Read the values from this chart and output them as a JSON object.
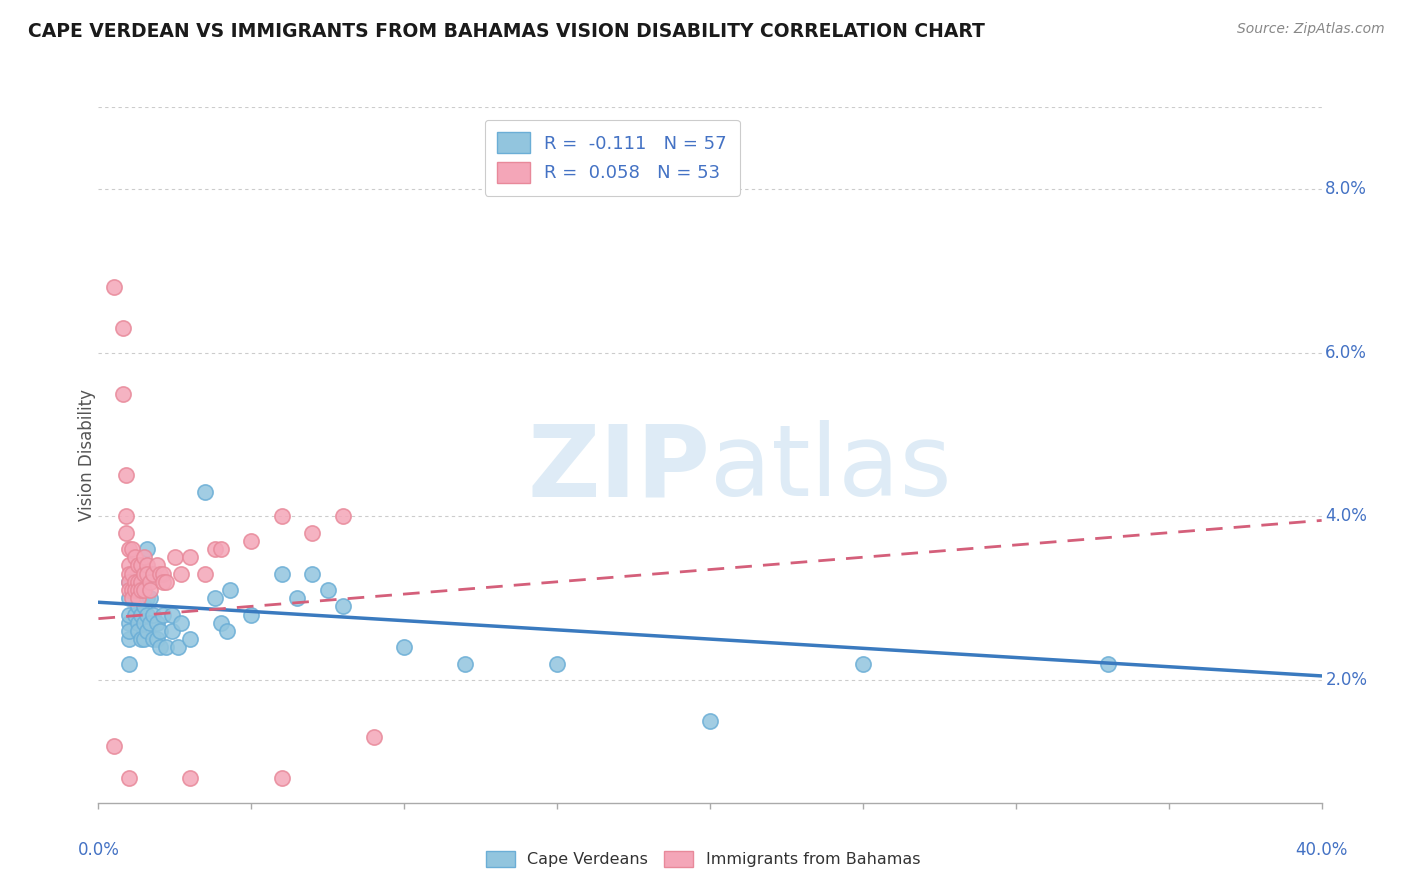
{
  "title": "CAPE VERDEAN VS IMMIGRANTS FROM BAHAMAS VISION DISABILITY CORRELATION CHART",
  "source": "Source: ZipAtlas.com",
  "ylabel": "Vision Disability",
  "ylabel_right_ticks": [
    "2.0%",
    "4.0%",
    "6.0%",
    "8.0%"
  ],
  "ylabel_right_values": [
    0.02,
    0.04,
    0.06,
    0.08
  ],
  "xlim": [
    0.0,
    0.4
  ],
  "ylim": [
    0.005,
    0.09
  ],
  "blue_color": "#92c5de",
  "pink_color": "#f4a6b8",
  "blue_edge_color": "#6baed6",
  "pink_edge_color": "#e8899a",
  "blue_line_color": "#3a7abf",
  "pink_line_color": "#d45f7a",
  "blue_scatter": [
    [
      0.01,
      0.025
    ],
    [
      0.01,
      0.022
    ],
    [
      0.01,
      0.027
    ],
    [
      0.01,
      0.03
    ],
    [
      0.01,
      0.028
    ],
    [
      0.01,
      0.026
    ],
    [
      0.01,
      0.032
    ],
    [
      0.012,
      0.031
    ],
    [
      0.012,
      0.028
    ],
    [
      0.013,
      0.029
    ],
    [
      0.013,
      0.033
    ],
    [
      0.013,
      0.027
    ],
    [
      0.013,
      0.026
    ],
    [
      0.014,
      0.031
    ],
    [
      0.014,
      0.028
    ],
    [
      0.014,
      0.025
    ],
    [
      0.015,
      0.032
    ],
    [
      0.015,
      0.029
    ],
    [
      0.015,
      0.027
    ],
    [
      0.015,
      0.025
    ],
    [
      0.016,
      0.036
    ],
    [
      0.016,
      0.03
    ],
    [
      0.016,
      0.028
    ],
    [
      0.016,
      0.026
    ],
    [
      0.017,
      0.03
    ],
    [
      0.017,
      0.027
    ],
    [
      0.018,
      0.033
    ],
    [
      0.018,
      0.028
    ],
    [
      0.018,
      0.025
    ],
    [
      0.019,
      0.027
    ],
    [
      0.019,
      0.025
    ],
    [
      0.02,
      0.026
    ],
    [
      0.02,
      0.024
    ],
    [
      0.021,
      0.028
    ],
    [
      0.022,
      0.024
    ],
    [
      0.024,
      0.028
    ],
    [
      0.024,
      0.026
    ],
    [
      0.026,
      0.024
    ],
    [
      0.027,
      0.027
    ],
    [
      0.03,
      0.025
    ],
    [
      0.035,
      0.043
    ],
    [
      0.038,
      0.03
    ],
    [
      0.04,
      0.027
    ],
    [
      0.042,
      0.026
    ],
    [
      0.043,
      0.031
    ],
    [
      0.05,
      0.028
    ],
    [
      0.06,
      0.033
    ],
    [
      0.065,
      0.03
    ],
    [
      0.07,
      0.033
    ],
    [
      0.075,
      0.031
    ],
    [
      0.08,
      0.029
    ],
    [
      0.1,
      0.024
    ],
    [
      0.12,
      0.022
    ],
    [
      0.15,
      0.022
    ],
    [
      0.2,
      0.015
    ],
    [
      0.25,
      0.022
    ],
    [
      0.33,
      0.022
    ]
  ],
  "pink_scatter": [
    [
      0.005,
      0.068
    ],
    [
      0.008,
      0.063
    ],
    [
      0.008,
      0.055
    ],
    [
      0.009,
      0.045
    ],
    [
      0.009,
      0.04
    ],
    [
      0.009,
      0.038
    ],
    [
      0.01,
      0.036
    ],
    [
      0.01,
      0.034
    ],
    [
      0.01,
      0.033
    ],
    [
      0.01,
      0.032
    ],
    [
      0.01,
      0.031
    ],
    [
      0.011,
      0.036
    ],
    [
      0.011,
      0.033
    ],
    [
      0.011,
      0.031
    ],
    [
      0.011,
      0.03
    ],
    [
      0.012,
      0.035
    ],
    [
      0.012,
      0.032
    ],
    [
      0.012,
      0.031
    ],
    [
      0.013,
      0.034
    ],
    [
      0.013,
      0.032
    ],
    [
      0.013,
      0.031
    ],
    [
      0.013,
      0.03
    ],
    [
      0.014,
      0.034
    ],
    [
      0.014,
      0.032
    ],
    [
      0.014,
      0.031
    ],
    [
      0.015,
      0.035
    ],
    [
      0.015,
      0.033
    ],
    [
      0.015,
      0.031
    ],
    [
      0.016,
      0.034
    ],
    [
      0.016,
      0.033
    ],
    [
      0.017,
      0.032
    ],
    [
      0.017,
      0.031
    ],
    [
      0.018,
      0.033
    ],
    [
      0.019,
      0.034
    ],
    [
      0.02,
      0.033
    ],
    [
      0.021,
      0.033
    ],
    [
      0.021,
      0.032
    ],
    [
      0.022,
      0.032
    ],
    [
      0.025,
      0.035
    ],
    [
      0.027,
      0.033
    ],
    [
      0.03,
      0.035
    ],
    [
      0.035,
      0.033
    ],
    [
      0.038,
      0.036
    ],
    [
      0.04,
      0.036
    ],
    [
      0.05,
      0.037
    ],
    [
      0.06,
      0.04
    ],
    [
      0.07,
      0.038
    ],
    [
      0.08,
      0.04
    ],
    [
      0.005,
      0.012
    ],
    [
      0.01,
      0.008
    ],
    [
      0.03,
      0.008
    ],
    [
      0.06,
      0.008
    ],
    [
      0.09,
      0.013
    ]
  ],
  "blue_trend_x": [
    0.0,
    0.4
  ],
  "blue_trend_y": [
    0.0295,
    0.0205
  ],
  "pink_trend_x": [
    0.0,
    0.4
  ],
  "pink_trend_y": [
    0.0275,
    0.0395
  ],
  "grid_color": "#cccccc",
  "tick_color": "#aaaaaa"
}
